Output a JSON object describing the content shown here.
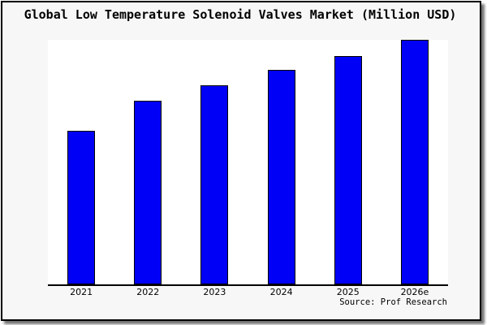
{
  "chart_data": {
    "type": "bar",
    "title": "Global Low Temperature Solenoid Valves Market (Million USD)",
    "source": "Source: Prof Research",
    "categories": [
      "2021",
      "2022",
      "2023",
      "2024",
      "2025",
      "2026e"
    ],
    "values": [
      62.7,
      75.0,
      81.3,
      87.7,
      93.3,
      100
    ],
    "value_scale_note": "no numeric y-axis shown; values are bar heights relative to tallest bar (2026e = 100)",
    "xlabel": "",
    "ylabel": "",
    "ylim": [
      0,
      100
    ],
    "grid": false,
    "legend": "none",
    "y_axis_ticks": "none",
    "bar_color": "#0000f6",
    "bar_border_color": "#000000"
  },
  "colors": {
    "frame_background": "#f7f7f7",
    "plot_background": "#ffffff",
    "frame_border": "#000000",
    "axis_line": "#000000",
    "text": "#000000",
    "shadow": "#8c8c8c"
  }
}
